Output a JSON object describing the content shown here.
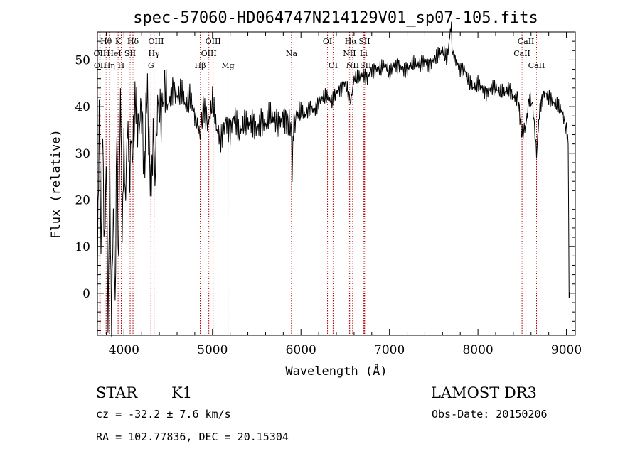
{
  "chart_data": {
    "type": "line",
    "title": "spec-57060-HD064747N214129V01_sp07-105.fits",
    "xlabel": "Wavelength (Å)",
    "ylabel": "Flux (relative)",
    "xlim": [
      3700,
      9100
    ],
    "ylim": [
      -9,
      56
    ],
    "xticks": [
      4000,
      5000,
      6000,
      7000,
      8000,
      9000
    ],
    "yticks": [
      0,
      10,
      20,
      30,
      40,
      50
    ],
    "grid": false,
    "series": [
      {
        "x": [
          3700,
          3720,
          3740,
          3760,
          3780,
          3800,
          3820,
          3840,
          3860,
          3880,
          3900,
          3920,
          3940,
          3960,
          3980,
          4000,
          4020,
          4040,
          4060,
          4080,
          4100,
          4130,
          4160,
          4200,
          4230,
          4260,
          4290,
          4310,
          4330,
          4350,
          4380,
          4420,
          4460,
          4500,
          4550,
          4600,
          4650,
          4700,
          4750,
          4800,
          4860,
          4900,
          4950,
          5000,
          5050,
          5100,
          5150,
          5200,
          5250,
          5300,
          5350,
          5400,
          5450,
          5500,
          5550,
          5600,
          5650,
          5700,
          5750,
          5800,
          5850,
          5890,
          5900,
          5910,
          5950,
          6000,
          6050,
          6100,
          6150,
          6200,
          6250,
          6300,
          6350,
          6400,
          6450,
          6500,
          6563,
          6600,
          6650,
          6700,
          6750,
          6800,
          6850,
          6900,
          6950,
          7000,
          7050,
          7100,
          7150,
          7200,
          7250,
          7300,
          7350,
          7400,
          7450,
          7500,
          7550,
          7600,
          7650,
          7700,
          7710,
          7720,
          7750,
          7800,
          7850,
          7900,
          7950,
          8000,
          8050,
          8100,
          8150,
          8200,
          8250,
          8300,
          8350,
          8400,
          8450,
          8498,
          8542,
          8580,
          8620,
          8662,
          8700,
          8750,
          8800,
          8850,
          8900,
          8950,
          9000,
          9020,
          9030,
          9040
        ],
        "values": [
          3,
          40,
          10,
          35,
          8,
          30,
          -5,
          25,
          -8,
          20,
          -3,
          35,
          5,
          45,
          15,
          30,
          20,
          38,
          25,
          32,
          30,
          42,
          35,
          40,
          25,
          45,
          28,
          22,
          35,
          25,
          40,
          38,
          45,
          40,
          44,
          42,
          43,
          40,
          42,
          38,
          34,
          40,
          36,
          41,
          35,
          33,
          37,
          35,
          38,
          34,
          36,
          36,
          37,
          35,
          37,
          36,
          38,
          37,
          36,
          38,
          37,
          35,
          24,
          35,
          38,
          39,
          38,
          40,
          39,
          41,
          42,
          42,
          41,
          43,
          44,
          45,
          41,
          46,
          46,
          47,
          46,
          48,
          48,
          48,
          49,
          47,
          49,
          49,
          48,
          48,
          49,
          49,
          49,
          50,
          49,
          50,
          51,
          52,
          50,
          58,
          50,
          51,
          50,
          48,
          48,
          45,
          44,
          45,
          44,
          43,
          44,
          44,
          43,
          43,
          44,
          42,
          42,
          34,
          36,
          42,
          40,
          30,
          40,
          43,
          42,
          41,
          40,
          39,
          35,
          33,
          0,
          -1
        ]
      }
    ],
    "line_markers": [
      {
        "label": "Hθ",
        "wl": 3798,
        "row": 0
      },
      {
        "label": "OII",
        "wl": 3727,
        "row": 1
      },
      {
        "label": "OII",
        "wl": 3730,
        "row": 2
      },
      {
        "label": "Hη",
        "wl": 3835,
        "row": 2
      },
      {
        "label": "K",
        "wl": 3934,
        "row": 0
      },
      {
        "label": "HeI",
        "wl": 3889,
        "row": 1
      },
      {
        "label": "H",
        "wl": 3969,
        "row": 2
      },
      {
        "label": "SII",
        "wl": 4070,
        "row": 1
      },
      {
        "label": "Hδ",
        "wl": 4102,
        "row": 0
      },
      {
        "label": "OIII",
        "wl": 4363,
        "row": 0
      },
      {
        "label": "Hγ",
        "wl": 4340,
        "row": 1
      },
      {
        "label": "G",
        "wl": 4305,
        "row": 2
      },
      {
        "label": "Hβ",
        "wl": 4861,
        "row": 2
      },
      {
        "label": "OIII",
        "wl": 5007,
        "row": 0
      },
      {
        "label": "OIII",
        "wl": 4959,
        "row": 1
      },
      {
        "label": "Mg",
        "wl": 5175,
        "row": 2
      },
      {
        "label": "Na",
        "wl": 5893,
        "row": 1
      },
      {
        "label": "OI",
        "wl": 6300,
        "row": 0
      },
      {
        "label": "OI",
        "wl": 6363,
        "row": 2
      },
      {
        "label": "Hα",
        "wl": 6563,
        "row": 0
      },
      {
        "label": "NII",
        "wl": 6548,
        "row": 1
      },
      {
        "label": "NII",
        "wl": 6584,
        "row": 2
      },
      {
        "label": "SII",
        "wl": 6717,
        "row": 0
      },
      {
        "label": "Li",
        "wl": 6708,
        "row": 1
      },
      {
        "label": "SII",
        "wl": 6731,
        "row": 2
      },
      {
        "label": "CaII",
        "wl": 8542,
        "row": 0
      },
      {
        "label": "CaII",
        "wl": 8498,
        "row": 1
      },
      {
        "label": "CaII",
        "wl": 8662,
        "row": 2
      }
    ]
  },
  "info": {
    "object_class": "STAR",
    "subclass": "K1",
    "survey": "LAMOST DR3",
    "cz": "cz = -32.2 ± 7.6 km/s",
    "obs_date": "Obs-Date: 20150206",
    "radec": "RA = 102.77836, DEC =  20.15304"
  },
  "colors": {
    "spectrum": "#000000",
    "marker": "#b00000"
  }
}
